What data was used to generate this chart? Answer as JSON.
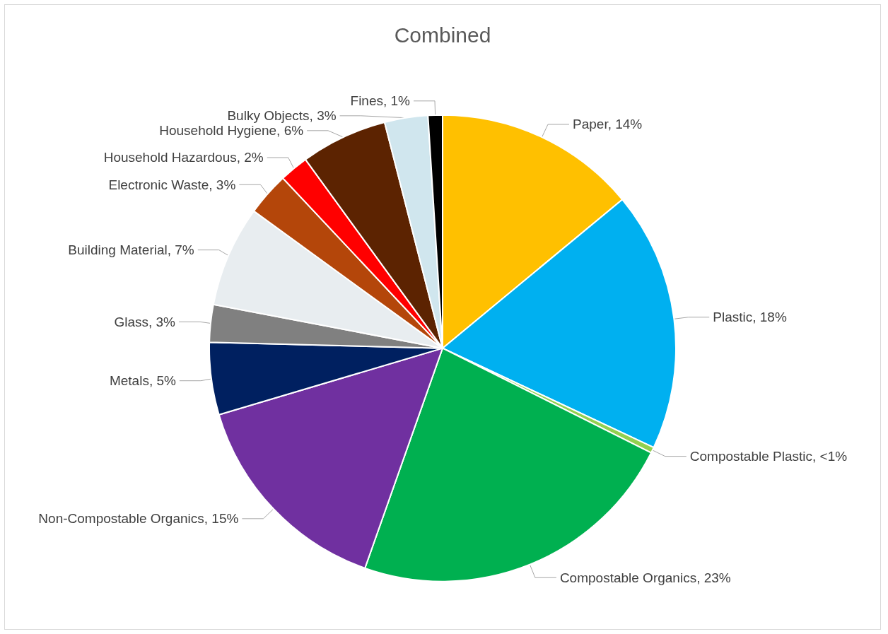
{
  "chart_data": {
    "type": "pie",
    "title": "Combined",
    "categories": [
      "Paper",
      "Plastic",
      "Compostable Plastic",
      "Compostable Organics",
      "Non-Compostable Organics",
      "Metals",
      "Glass",
      "Building Material",
      "Electronic Waste",
      "Household Hazardous",
      "Household Hygiene",
      "Bulky Objects",
      "Fines"
    ],
    "values": [
      14,
      18,
      0.4,
      23,
      15,
      5,
      2.6,
      7,
      3,
      2,
      6,
      3,
      1
    ],
    "value_labels": [
      "14%",
      "18%",
      "<1%",
      "23%",
      "15%",
      "5%",
      "3%",
      "7%",
      "3%",
      "2%",
      "6%",
      "3%",
      "1%"
    ],
    "colors": [
      "#ffc000",
      "#00b0f0",
      "#92d050",
      "#00b050",
      "#7030a0",
      "#002060",
      "#808080",
      "#e8edf0",
      "#b4460a",
      "#ff0000",
      "#5c2301",
      "#d0e6ee",
      "#000000"
    ],
    "legend": false
  }
}
